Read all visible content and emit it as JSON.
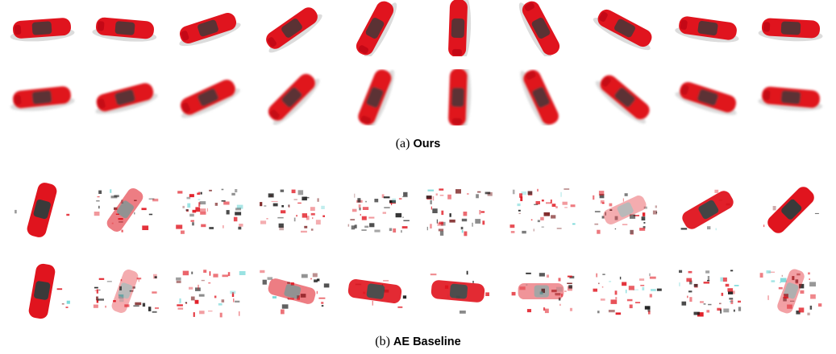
{
  "panels": [
    {
      "tag": "(a)",
      "name": "Ours",
      "rows": [
        {
          "kind": "clean",
          "angles": [
            -4,
            5,
            -18,
            -35,
            -62,
            -88,
            62,
            28,
            8,
            3
          ]
        },
        {
          "kind": "blurry",
          "angles": [
            -6,
            -15,
            -25,
            -45,
            -68,
            -88,
            65,
            40,
            18,
            5
          ]
        }
      ]
    },
    {
      "tag": "(b)",
      "name": "AE Baseline",
      "rows": [
        {
          "kind": "noisy",
          "quality": [
            1.0,
            0.55,
            0.1,
            0.2,
            0.15,
            0.15,
            0.25,
            0.35,
            0.95,
            1.0
          ],
          "angles": [
            -75,
            -55,
            0,
            0,
            0,
            0,
            -15,
            -25,
            -30,
            -45
          ]
        },
        {
          "kind": "noisy",
          "quality": [
            1.0,
            0.35,
            0.2,
            0.55,
            0.9,
            0.9,
            0.45,
            0.3,
            0.1,
            0.4
          ],
          "angles": [
            -80,
            -70,
            10,
            15,
            8,
            5,
            0,
            0,
            0,
            -70
          ]
        }
      ]
    }
  ],
  "colors": {
    "car_red": "#e0141e",
    "car_dark": "#3a3a3a",
    "shadow": "#9a9a9a",
    "artifact_cyan": "#6fd6d6"
  }
}
